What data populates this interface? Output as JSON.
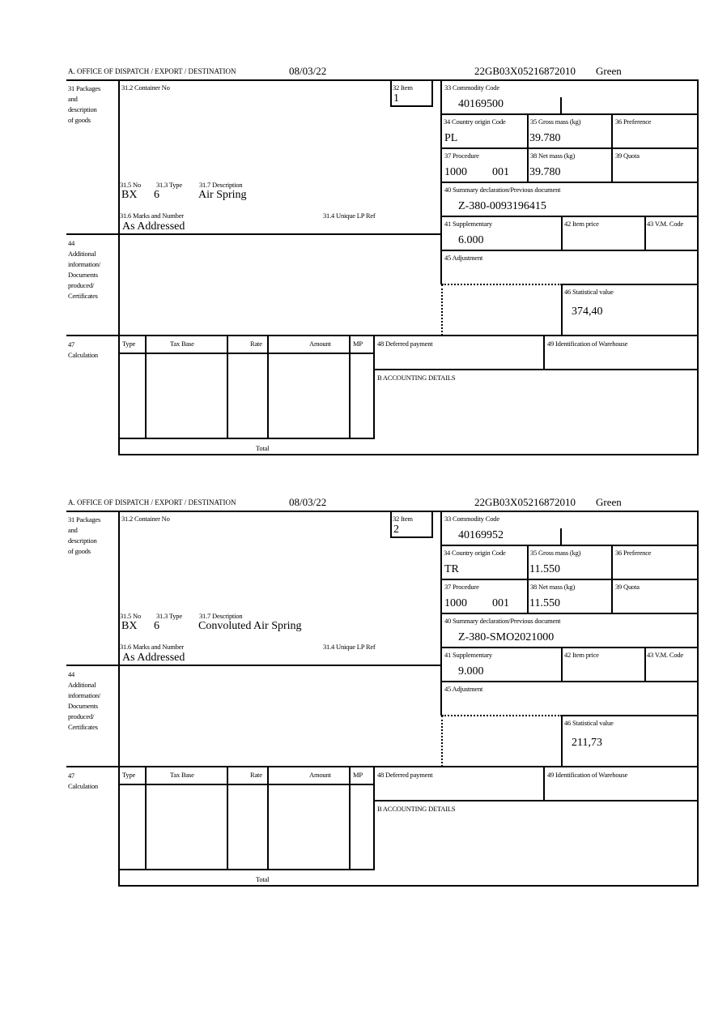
{
  "labels": {
    "office": "A. OFFICE OF DISPATCH / EXPORT / DESTINATION",
    "box31": [
      "31 Packages",
      "and",
      "description",
      "of goods"
    ],
    "box31_2": "31.2 Container No",
    "box32": "32 Item",
    "box31_5": "31.5 No",
    "box31_3": "31.3 Type",
    "box31_7": "31.7 Description",
    "box31_6": "31.6 Marks and Number",
    "box31_4": "31.4 Unique LP Ref",
    "box33": "33 Commodity Code",
    "box34": "34 Country origin Code",
    "box35": "35 Gross mass (kg)",
    "box36": "36 Preference",
    "box37": "37 Procedure",
    "box38": "38 Net mass (kg)",
    "box39": "39 Quota",
    "box40": "40 Summary declaration/Previous document",
    "box41": "41 Supplementary",
    "box42": "42 Item price",
    "box43": "43 V.M. Code",
    "box44": [
      "44",
      "Additional",
      "information/",
      "Documents",
      "produced/",
      "Certificates"
    ],
    "box45": "45 Adjustment",
    "box46": "46 Statistical value",
    "box47": [
      "47",
      "Calculation"
    ],
    "calc_cols": [
      "Type",
      "Tax Base",
      "Rate",
      "Amount",
      "MP"
    ],
    "total": "Total",
    "box48": "48 Deferred payment",
    "box49": "49 Identification of Warehouse",
    "boxB": "B ACCOUNTING DETAILS"
  },
  "items": [
    {
      "date": "08/03/22",
      "reference": "22GB03X05216872010",
      "route": "Green",
      "item_no": "1",
      "package_kind": "BX",
      "package_count": "6",
      "description": "Air Spring",
      "marks": "As Addressed",
      "commodity_code": "40169500",
      "country_origin": "PL",
      "gross_mass": "39.780",
      "procedure": "1000",
      "procedure_additional": "001",
      "net_mass": "39.780",
      "previous_document": "Z-380-0093196415",
      "supplementary": "6.000",
      "statistical_value": "374,40"
    },
    {
      "date": "08/03/22",
      "reference": "22GB03X05216872010",
      "route": "Green",
      "item_no": "2",
      "package_kind": "BX",
      "package_count": "6",
      "description": "Convoluted Air Spring",
      "marks": "As Addressed",
      "commodity_code": "40169952",
      "country_origin": "TR",
      "gross_mass": "11.550",
      "procedure": "1000",
      "procedure_additional": "001",
      "net_mass": "11.550",
      "previous_document": "Z-380-SMO2021000",
      "supplementary": "9.000",
      "statistical_value": "211,73"
    }
  ]
}
